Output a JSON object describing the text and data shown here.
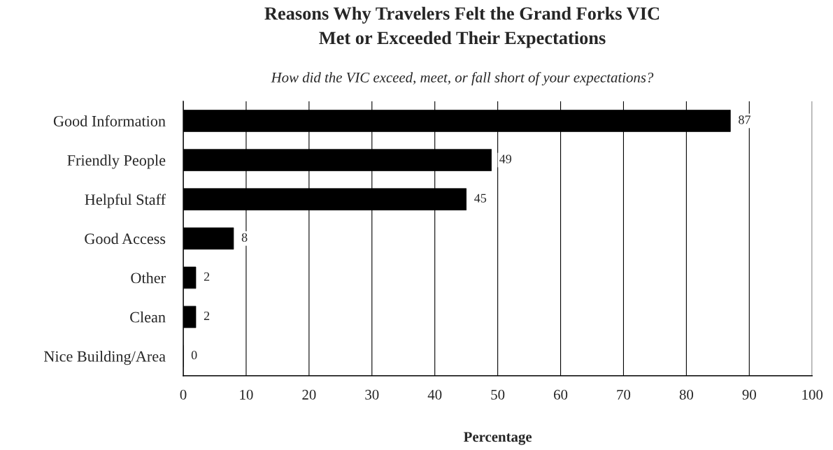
{
  "chart_data": {
    "type": "bar",
    "orientation": "horizontal",
    "title": "Reasons Why Travelers Felt the Grand Forks VIC\nMet or Exceeded Their Expectations",
    "subtitle": "How did the VIC exceed, meet, or fall short of your expectations?",
    "xlabel": "Percentage",
    "categories": [
      "Good Information",
      "Friendly People",
      "Helpful Staff",
      "Good Access",
      "Other",
      "Clean",
      "Nice Building/Area"
    ],
    "values": [
      87,
      49,
      45,
      8,
      2,
      2,
      0
    ],
    "color": "#000000",
    "xlim": [
      0,
      100
    ],
    "xticks": [
      0,
      10,
      20,
      30,
      40,
      50,
      60,
      70,
      80,
      90,
      100
    ],
    "grid": "x",
    "data_labels": true,
    "legend": false
  }
}
